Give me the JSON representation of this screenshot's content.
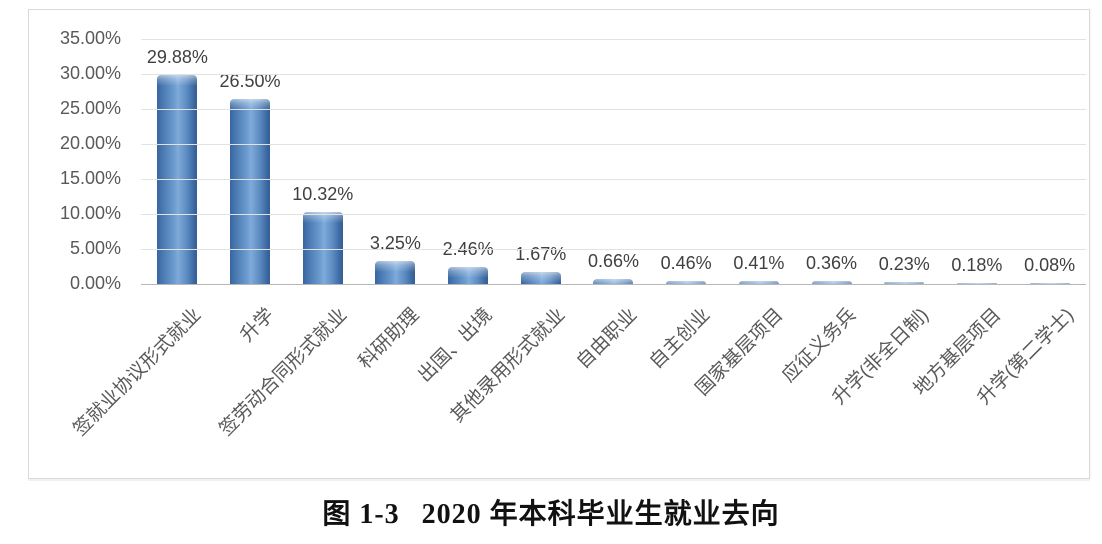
{
  "caption": {
    "figure_label": "图 1-3",
    "title": "2020 年本科毕业生就业去向"
  },
  "chart_data": {
    "type": "bar",
    "title": "图 1-3 2020 年本科毕业生就业去向",
    "categories": [
      "签就业协议形式就业",
      "升学",
      "签劳动合同形式就业",
      "科研助理",
      "出国、出境",
      "其他录用形式就业",
      "自由职业",
      "自主创业",
      "国家基层项目",
      "应征义务兵",
      "升学(非全日制)",
      "地方基层项目",
      "升学(第二学士)"
    ],
    "values": [
      29.88,
      26.5,
      10.32,
      3.25,
      2.46,
      1.67,
      0.66,
      0.46,
      0.41,
      0.36,
      0.23,
      0.18,
      0.08
    ],
    "value_labels": [
      "29.88%",
      "26.50%",
      "10.32%",
      "3.25%",
      "2.46%",
      "1.67%",
      "0.66%",
      "0.46%",
      "0.41%",
      "0.36%",
      "0.23%",
      "0.18%",
      "0.08%"
    ],
    "yticks": [
      "35.00%",
      "30.00%",
      "25.00%",
      "20.00%",
      "15.00%",
      "10.00%",
      "5.00%",
      "0.00%"
    ],
    "ylim": [
      0,
      35
    ],
    "xlabel": "",
    "ylabel": "",
    "grid": true,
    "legend": "none",
    "bar_color_edge": "#3a6aa4",
    "bar_color_center": "#7ea9d8",
    "gridline_color": "#e2e2e2",
    "axis_line_color": "#b7b7b7",
    "tick_label_color": "#595959",
    "data_label_color": "#404040"
  }
}
